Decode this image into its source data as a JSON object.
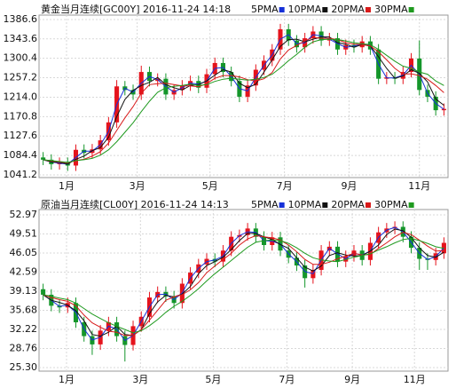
{
  "chart_data": [
    {
      "type": "candlestick",
      "title": "黄金当月连续[GC00Y] 2016-11-24 14:18",
      "open": [
        1080,
        1075,
        1065,
        1068,
        1062,
        1097,
        1090,
        1098,
        1118,
        1158,
        1238,
        1230,
        1220,
        1270,
        1250,
        1255,
        1220,
        1230,
        1240,
        1250,
        1235,
        1265,
        1290,
        1270,
        1250,
        1215,
        1240,
        1275,
        1295,
        1320,
        1365,
        1340,
        1325,
        1345,
        1360,
        1340,
        1345,
        1320,
        1330,
        1325,
        1338,
        1320,
        1255,
        1258,
        1255,
        1270,
        1300,
        1230,
        1215,
        1185
      ],
      "high": [
        1092,
        1087,
        1080,
        1080,
        1109,
        1109,
        1110,
        1130,
        1170,
        1252,
        1250,
        1242,
        1284,
        1282,
        1267,
        1267,
        1242,
        1252,
        1262,
        1262,
        1277,
        1302,
        1302,
        1282,
        1262,
        1252,
        1287,
        1307,
        1332,
        1377,
        1377,
        1352,
        1357,
        1372,
        1372,
        1357,
        1357,
        1342,
        1342,
        1350,
        1350,
        1332,
        1270,
        1270,
        1282,
        1312,
        1340,
        1242,
        1227,
        1200
      ],
      "low": [
        1063,
        1053,
        1053,
        1050,
        1050,
        1078,
        1078,
        1086,
        1106,
        1146,
        1218,
        1208,
        1208,
        1238,
        1238,
        1208,
        1208,
        1218,
        1228,
        1223,
        1223,
        1253,
        1258,
        1238,
        1203,
        1203,
        1228,
        1263,
        1283,
        1308,
        1328,
        1313,
        1313,
        1333,
        1328,
        1328,
        1308,
        1308,
        1313,
        1313,
        1308,
        1243,
        1243,
        1243,
        1243,
        1258,
        1218,
        1203,
        1173,
        1173
      ],
      "close": [
        1075,
        1065,
        1068,
        1062,
        1097,
        1090,
        1098,
        1118,
        1158,
        1238,
        1230,
        1220,
        1270,
        1250,
        1255,
        1220,
        1230,
        1240,
        1250,
        1235,
        1265,
        1290,
        1270,
        1250,
        1215,
        1240,
        1275,
        1295,
        1320,
        1365,
        1340,
        1325,
        1345,
        1360,
        1340,
        1345,
        1320,
        1330,
        1325,
        1338,
        1320,
        1255,
        1258,
        1255,
        1270,
        1300,
        1230,
        1215,
        1185,
        1188
      ],
      "up_color": "#e5131c",
      "down_color": "#14962a",
      "series": [
        {
          "name": "5PMA",
          "color": "#1530d8",
          "values": [
            1075,
            1070,
            1067,
            1065,
            1080,
            1094,
            1094,
            1108,
            1138,
            1198,
            1234,
            1225,
            1245,
            1260,
            1253,
            1238,
            1225,
            1235,
            1245,
            1243,
            1250,
            1278,
            1280,
            1260,
            1233,
            1228,
            1258,
            1285,
            1308,
            1343,
            1353,
            1333,
            1335,
            1353,
            1350,
            1343,
            1333,
            1325,
            1328,
            1332,
            1329,
            1288,
            1257,
            1257,
            1263,
            1285,
            1265,
            1223,
            1200,
            1187
          ]
        },
        {
          "name": "10PMA",
          "color": "#111111",
          "values": [
            1075,
            1070,
            1069,
            1065,
            1076,
            1083,
            1095,
            1102,
            1125,
            1171,
            1209,
            1229,
            1240,
            1247,
            1258,
            1242,
            1235,
            1230,
            1240,
            1242,
            1250,
            1263,
            1275,
            1270,
            1245,
            1235,
            1243,
            1270,
            1297,
            1327,
            1342,
            1343,
            1337,
            1343,
            1348,
            1348,
            1335,
            1332,
            1325,
            1331,
            1328,
            1304,
            1278,
            1256,
            1261,
            1275,
            1267,
            1248,
            1210,
            1196
          ]
        },
        {
          "name": "20PMA",
          "color": "#d81a1a",
          "values": [
            1075,
            1072,
            1070,
            1068,
            1073,
            1076,
            1083,
            1093,
            1112,
            1140,
            1168,
            1193,
            1223,
            1242,
            1244,
            1245,
            1242,
            1239,
            1239,
            1237,
            1244,
            1256,
            1262,
            1262,
            1259,
            1253,
            1250,
            1255,
            1269,
            1299,
            1319,
            1329,
            1339,
            1347,
            1345,
            1345,
            1342,
            1335,
            1332,
            1331,
            1328,
            1315,
            1297,
            1278,
            1265,
            1266,
            1262,
            1254,
            1240,
            1224
          ]
        },
        {
          "name": "30PMA",
          "color": "#1f9a1f",
          "values": [
            1075,
            1073,
            1071,
            1069,
            1073,
            1075,
            1078,
            1085,
            1097,
            1115,
            1136,
            1157,
            1182,
            1205,
            1225,
            1235,
            1238,
            1240,
            1243,
            1240,
            1242,
            1249,
            1254,
            1256,
            1254,
            1252,
            1254,
            1258,
            1265,
            1279,
            1295,
            1309,
            1325,
            1337,
            1342,
            1343,
            1342,
            1339,
            1335,
            1333,
            1331,
            1320,
            1307,
            1294,
            1283,
            1278,
            1270,
            1265,
            1250,
            1240
          ]
        }
      ],
      "xlim": [
        -0.5,
        49.5
      ],
      "xticks": [
        {
          "value": 2.86,
          "label": "1月"
        },
        {
          "value": 11.5,
          "label": "3月"
        },
        {
          "value": 20.4,
          "label": "5月"
        },
        {
          "value": 29.5,
          "label": "7月"
        },
        {
          "value": 37.4,
          "label": "9月"
        },
        {
          "value": 46.0,
          "label": "11月"
        }
      ],
      "ylim": [
        1041.2,
        1386.6
      ],
      "yticks": [
        1041.2,
        1084.4,
        1127.6,
        1170.8,
        {
          "value": 1214,
          "label": "1214.0"
        },
        1257.2,
        1300.4,
        1343.6,
        1386.6
      ],
      "grid": true
    },
    {
      "type": "candlestick",
      "title": "原油当月连续[CL00Y] 2016-11-24 14:13",
      "open": [
        39.5,
        38.5,
        36.5,
        36.2,
        37.0,
        33.5,
        31.0,
        29.5,
        32.0,
        33.5,
        31.0,
        29.4,
        32.8,
        34.5,
        38.0,
        39.0,
        38.2,
        37.0,
        40.5,
        42.5,
        44.0,
        45.0,
        44.5,
        46.5,
        49.0,
        49.3,
        50.5,
        49.0,
        47.5,
        48.9,
        46.5,
        45.2,
        43.8,
        41.5,
        43.0,
        46.5,
        47.2,
        44.5,
        45.5,
        46.5,
        44.8,
        47.9,
        49.8,
        50.5,
        50.8,
        49.0,
        47.0,
        45.0,
        44.8,
        46.0
      ],
      "high": [
        40.5,
        39.5,
        37.5,
        38.0,
        38.0,
        34.5,
        32.0,
        33.0,
        34.5,
        34.5,
        32.0,
        33.8,
        35.5,
        39.0,
        40.0,
        40.0,
        39.2,
        41.5,
        43.5,
        45.0,
        46.0,
        46.0,
        47.5,
        50.0,
        50.3,
        51.5,
        51.5,
        50.0,
        49.9,
        49.9,
        47.5,
        46.2,
        44.8,
        44.0,
        47.5,
        48.2,
        48.2,
        46.5,
        47.5,
        47.5,
        48.9,
        50.8,
        51.5,
        51.8,
        51.8,
        50.0,
        48.0,
        46.0,
        47.0,
        48.9
      ],
      "low": [
        37.5,
        35.5,
        35.2,
        35.2,
        32.5,
        30.0,
        27.6,
        28.5,
        31.0,
        30.0,
        26.4,
        28.4,
        31.8,
        33.5,
        37.0,
        37.2,
        36.0,
        36.0,
        39.5,
        41.5,
        43.0,
        43.5,
        43.5,
        45.5,
        48.0,
        48.3,
        48.0,
        46.5,
        46.5,
        45.5,
        44.2,
        42.8,
        39.8,
        40.5,
        42.0,
        45.5,
        43.5,
        43.5,
        44.5,
        43.8,
        43.8,
        46.9,
        48.8,
        49.5,
        48.0,
        46.0,
        43.0,
        43.0,
        43.8,
        45.0
      ],
      "close": [
        38.5,
        36.5,
        36.2,
        37.0,
        33.5,
        31.0,
        29.5,
        32.0,
        33.5,
        31.0,
        29.4,
        32.8,
        34.5,
        38.0,
        39.0,
        38.2,
        37.0,
        40.5,
        42.5,
        44.0,
        45.0,
        44.5,
        46.5,
        49.0,
        49.3,
        50.5,
        49.0,
        47.5,
        48.9,
        46.5,
        45.2,
        43.8,
        41.5,
        43.0,
        46.5,
        47.2,
        44.5,
        45.5,
        46.5,
        44.8,
        47.9,
        49.8,
        50.5,
        50.8,
        49.0,
        47.0,
        45.0,
        44.8,
        46.0,
        47.9
      ],
      "up_color": "#e5131c",
      "down_color": "#14962a",
      "series": [
        {
          "name": "5PMA",
          "color": "#1530d8",
          "values": [
            38.5,
            37.5,
            36.4,
            36.6,
            35.3,
            32.3,
            30.3,
            30.8,
            32.8,
            32.3,
            30.2,
            31.1,
            33.7,
            36.3,
            38.5,
            38.6,
            37.6,
            38.8,
            41.5,
            43.3,
            44.5,
            44.8,
            45.5,
            47.8,
            49.2,
            49.9,
            49.8,
            48.3,
            48.2,
            47.7,
            45.9,
            44.5,
            42.7,
            42.3,
            44.8,
            46.9,
            45.9,
            45.0,
            46.0,
            45.7,
            46.4,
            48.9,
            50.2,
            50.7,
            49.9,
            48.0,
            46.0,
            44.9,
            45.4,
            47.0
          ]
        },
        {
          "name": "10PMA",
          "color": "#111111",
          "values": [
            38.5,
            37.5,
            37.1,
            36.6,
            35.6,
            33.8,
            31.3,
            31.0,
            31.7,
            32.8,
            31.3,
            31.1,
            32.2,
            35.1,
            37.2,
            38.4,
            38.1,
            38.6,
            40.0,
            42.3,
            43.8,
            44.5,
            45.3,
            46.7,
            48.3,
            49.6,
            49.6,
            49.0,
            48.5,
            47.6,
            46.9,
            45.2,
            43.5,
            42.8,
            43.7,
            45.6,
            46.1,
            45.7,
            45.5,
            45.6,
            46.4,
            47.5,
            49.4,
            50.4,
            50.1,
            48.9,
            47.0,
            45.6,
            45.3,
            46.2
          ]
        },
        {
          "name": "20PMA",
          "color": "#d81a1a",
          "values": [
            38.5,
            38.0,
            37.6,
            37.3,
            36.5,
            34.8,
            33.4,
            32.6,
            31.9,
            31.7,
            31.1,
            31.1,
            32.2,
            33.9,
            35.7,
            37.5,
            38.1,
            38.5,
            39.4,
            40.7,
            42.5,
            43.7,
            44.9,
            46.0,
            47.5,
            48.6,
            49.2,
            49.0,
            48.8,
            48.4,
            47.5,
            46.3,
            44.9,
            44.0,
            44.0,
            44.4,
            45.0,
            45.5,
            46.0,
            45.7,
            45.8,
            46.9,
            47.9,
            49.0,
            49.8,
            49.4,
            48.4,
            47.3,
            46.4,
            46.5
          ]
        },
        {
          "name": "30PMA",
          "color": "#1f9a1f",
          "values": [
            38.5,
            38.2,
            37.9,
            37.6,
            37.0,
            36.0,
            35.0,
            34.2,
            33.4,
            32.8,
            32.2,
            31.6,
            32.0,
            32.9,
            34.0,
            35.3,
            36.4,
            37.3,
            38.4,
            39.6,
            41.0,
            42.3,
            43.5,
            44.7,
            45.9,
            47.1,
            48.0,
            48.3,
            48.4,
            48.3,
            47.8,
            47.0,
            46.0,
            45.2,
            44.8,
            44.6,
            44.5,
            44.9,
            45.3,
            45.6,
            45.9,
            46.6,
            47.2,
            47.9,
            48.5,
            48.7,
            48.3,
            47.8,
            47.2,
            46.9
          ]
        }
      ],
      "xlim": [
        -0.5,
        49.5
      ],
      "xticks": [
        {
          "value": 2.86,
          "label": "1月"
        },
        {
          "value": 11.9,
          "label": "3月"
        },
        {
          "value": 20.8,
          "label": "5月"
        },
        {
          "value": 29.8,
          "label": "7月"
        },
        {
          "value": 37.8,
          "label": "9月"
        },
        {
          "value": 45.4,
          "label": "11月"
        }
      ],
      "ylim": [
        25.3,
        52.97
      ],
      "yticks": [
        {
          "value": 25.3,
          "label": "25.30"
        },
        28.76,
        32.22,
        35.68,
        39.13,
        42.59,
        46.05,
        49.51,
        52.97
      ],
      "grid": true
    }
  ]
}
